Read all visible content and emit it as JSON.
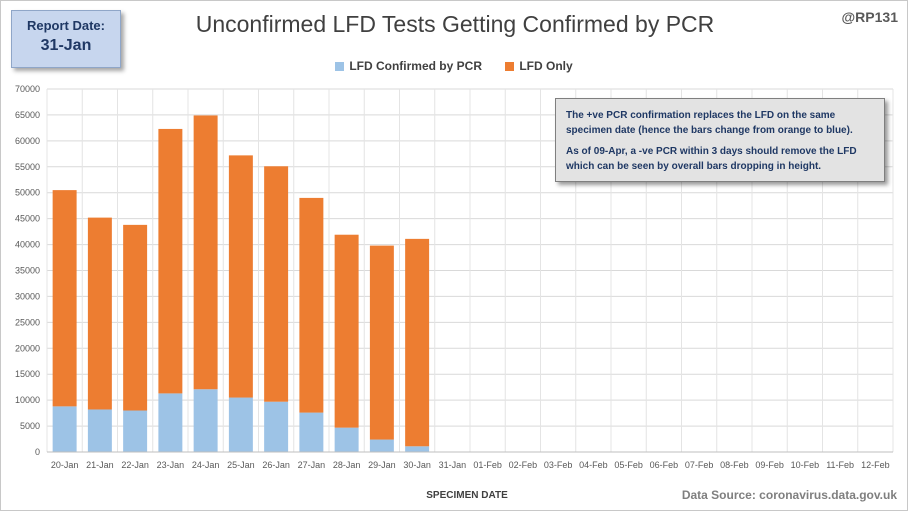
{
  "report": {
    "label": "Report Date:",
    "value": "31-Jan"
  },
  "handle": "@RP131",
  "source": "Data Source: coronavirus.data.gov.uk",
  "note": {
    "line1": "The +ve PCR confirmation replaces the LFD on the same specimen date (hence the bars change from orange to blue).",
    "line2": "As of 09-Apr, a -ve PCR within 3 days should remove the LFD which can be seen by overall bars dropping  in height."
  },
  "chart_data": {
    "type": "bar",
    "stacked": true,
    "title": "Unconfirmed LFD Tests Getting Confirmed by PCR",
    "xlabel": "SPECIMEN DATE",
    "ylabel": "",
    "ylim": [
      0,
      70000
    ],
    "yticks": [
      0,
      5000,
      10000,
      15000,
      20000,
      25000,
      30000,
      35000,
      40000,
      45000,
      50000,
      55000,
      60000,
      65000,
      70000
    ],
    "grid": true,
    "legend_position": "top",
    "categories": [
      "20-Jan",
      "21-Jan",
      "22-Jan",
      "23-Jan",
      "24-Jan",
      "25-Jan",
      "26-Jan",
      "27-Jan",
      "28-Jan",
      "29-Jan",
      "30-Jan",
      "31-Jan",
      "01-Feb",
      "02-Feb",
      "03-Feb",
      "04-Feb",
      "05-Feb",
      "06-Feb",
      "07-Feb",
      "08-Feb",
      "09-Feb",
      "10-Feb",
      "11-Feb",
      "12-Feb"
    ],
    "series": [
      {
        "name": "LFD Confirmed by PCR",
        "color": "#9dc3e6",
        "values": [
          8800,
          8200,
          8000,
          11300,
          12100,
          10500,
          9700,
          7600,
          4700,
          2400,
          1100,
          0,
          0,
          0,
          0,
          0,
          0,
          0,
          0,
          0,
          0,
          0,
          0,
          0
        ]
      },
      {
        "name": "LFD Only",
        "color": "#ed7d31",
        "values": [
          41700,
          37000,
          35800,
          51000,
          52800,
          46700,
          45400,
          41400,
          37200,
          37400,
          40000,
          0,
          0,
          0,
          0,
          0,
          0,
          0,
          0,
          0,
          0,
          0,
          0,
          0
        ]
      }
    ]
  }
}
